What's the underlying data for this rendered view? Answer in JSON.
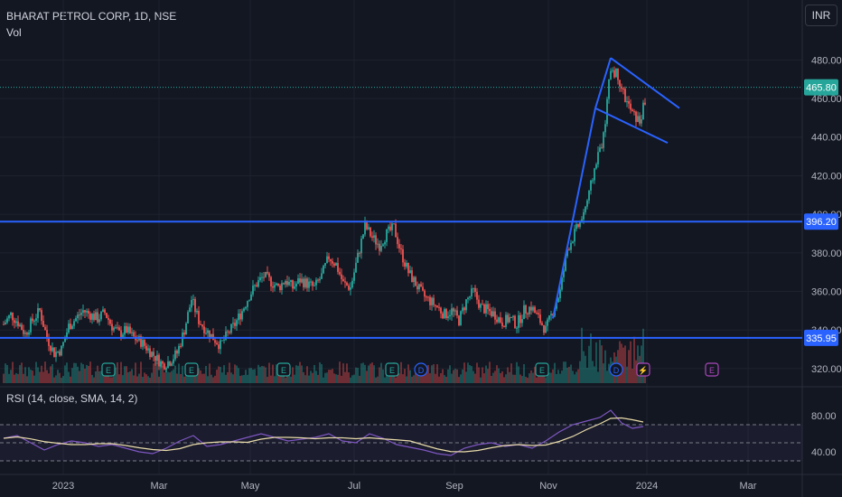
{
  "header": {
    "title": "BHARAT PETROL CORP, 1D, NSE",
    "volume_label": "Vol",
    "currency_button": "INR"
  },
  "rsi": {
    "label": "RSI (14, close, SMA, 14, 2)",
    "ticks": [
      "80.00",
      "40.00"
    ]
  },
  "colors": {
    "background": "#131722",
    "up": "#26a69a",
    "down": "#ef5350",
    "trendline": "#2962ff",
    "rsi_line": "#7e57c2",
    "rsi_ma": "#e8dba9",
    "current_price": "#26a69a"
  },
  "events": [
    {
      "kind": "earnings",
      "glyph": "E",
      "color": "#26a69a"
    },
    {
      "kind": "earnings",
      "glyph": "E",
      "color": "#26a69a"
    },
    {
      "kind": "earnings",
      "glyph": "E",
      "color": "#26a69a"
    },
    {
      "kind": "earnings",
      "glyph": "E",
      "color": "#26a69a"
    },
    {
      "kind": "dividend",
      "glyph": "D",
      "color": "#2962ff"
    },
    {
      "kind": "earnings",
      "glyph": "E",
      "color": "#26a69a"
    },
    {
      "kind": "dividend",
      "glyph": "D",
      "color": "#2962ff"
    },
    {
      "kind": "split",
      "glyph": "⚡",
      "color": "#ab47bc"
    },
    {
      "kind": "earnings",
      "glyph": "E",
      "color": "#ab47bc"
    }
  ],
  "chart_data": {
    "type": "candlestick",
    "title": "BHARAT PETROL CORP, 1D, NSE",
    "x_ticks": [
      "2023",
      "Mar",
      "May",
      "Jul",
      "Sep",
      "Nov",
      "2024",
      "Mar"
    ],
    "y_ticks": [
      "480.00",
      "460.00",
      "440.00",
      "420.00",
      "400.00",
      "380.00",
      "360.00",
      "340.00",
      "320.00"
    ],
    "ylim": [
      312,
      490
    ],
    "current_price": "465.80",
    "horizontal_levels": [
      "396.20",
      "335.95"
    ],
    "grid": true,
    "series": [
      {
        "name": "price",
        "points": [
          [
            0,
            343
          ],
          [
            8,
            348
          ],
          [
            16,
            344
          ],
          [
            24,
            338
          ],
          [
            32,
            345
          ],
          [
            40,
            350
          ],
          [
            48,
            336
          ],
          [
            56,
            328
          ],
          [
            64,
            330
          ],
          [
            72,
            342
          ],
          [
            80,
            346
          ],
          [
            88,
            350
          ],
          [
            96,
            348
          ],
          [
            104,
            346
          ],
          [
            112,
            349
          ],
          [
            120,
            342
          ],
          [
            128,
            338
          ],
          [
            136,
            340
          ],
          [
            144,
            336
          ],
          [
            152,
            334
          ],
          [
            160,
            330
          ],
          [
            168,
            326
          ],
          [
            176,
            322
          ],
          [
            184,
            324
          ],
          [
            192,
            328
          ],
          [
            200,
            340
          ],
          [
            208,
            356
          ],
          [
            216,
            345
          ],
          [
            224,
            340
          ],
          [
            232,
            336
          ],
          [
            240,
            332
          ],
          [
            248,
            338
          ],
          [
            256,
            343
          ],
          [
            264,
            350
          ],
          [
            272,
            358
          ],
          [
            280,
            364
          ],
          [
            288,
            368
          ],
          [
            296,
            365
          ],
          [
            304,
            362
          ],
          [
            312,
            366
          ],
          [
            320,
            362
          ],
          [
            328,
            366
          ],
          [
            336,
            364
          ],
          [
            344,
            362
          ],
          [
            352,
            368
          ],
          [
            360,
            378
          ],
          [
            368,
            374
          ],
          [
            376,
            364
          ],
          [
            384,
            362
          ],
          [
            392,
            378
          ],
          [
            400,
            394
          ],
          [
            408,
            388
          ],
          [
            416,
            384
          ],
          [
            424,
            390
          ],
          [
            432,
            393
          ],
          [
            440,
            380
          ],
          [
            448,
            370
          ],
          [
            456,
            364
          ],
          [
            464,
            358
          ],
          [
            472,
            355
          ],
          [
            480,
            352
          ],
          [
            488,
            348
          ],
          [
            496,
            350
          ],
          [
            504,
            345
          ],
          [
            512,
            355
          ],
          [
            520,
            360
          ],
          [
            528,
            352
          ],
          [
            536,
            350
          ],
          [
            544,
            348
          ],
          [
            552,
            344
          ],
          [
            560,
            346
          ],
          [
            568,
            343
          ],
          [
            576,
            350
          ],
          [
            584,
            352
          ],
          [
            592,
            346
          ],
          [
            600,
            340
          ],
          [
            608,
            350
          ],
          [
            616,
            360
          ],
          [
            624,
            382
          ],
          [
            632,
            390
          ],
          [
            640,
            398
          ],
          [
            648,
            410
          ],
          [
            656,
            428
          ],
          [
            664,
            440
          ],
          [
            672,
            476
          ],
          [
            680,
            472
          ],
          [
            688,
            460
          ],
          [
            696,
            452
          ],
          [
            704,
            448
          ],
          [
            712,
            462
          ]
        ]
      },
      {
        "name": "rsi",
        "points": [
          [
            0,
            55
          ],
          [
            15,
            58
          ],
          [
            30,
            50
          ],
          [
            45,
            42
          ],
          [
            60,
            48
          ],
          [
            75,
            52
          ],
          [
            90,
            50
          ],
          [
            105,
            46
          ],
          [
            120,
            48
          ],
          [
            135,
            44
          ],
          [
            150,
            40
          ],
          [
            165,
            38
          ],
          [
            180,
            44
          ],
          [
            195,
            52
          ],
          [
            210,
            58
          ],
          [
            225,
            46
          ],
          [
            240,
            48
          ],
          [
            255,
            52
          ],
          [
            270,
            56
          ],
          [
            285,
            60
          ],
          [
            300,
            56
          ],
          [
            315,
            52
          ],
          [
            330,
            54
          ],
          [
            345,
            56
          ],
          [
            360,
            60
          ],
          [
            375,
            52
          ],
          [
            390,
            50
          ],
          [
            405,
            60
          ],
          [
            420,
            55
          ],
          [
            435,
            48
          ],
          [
            450,
            45
          ],
          [
            465,
            42
          ],
          [
            480,
            38
          ],
          [
            495,
            36
          ],
          [
            510,
            44
          ],
          [
            525,
            48
          ],
          [
            540,
            50
          ],
          [
            555,
            46
          ],
          [
            570,
            48
          ],
          [
            585,
            44
          ],
          [
            600,
            52
          ],
          [
            615,
            62
          ],
          [
            630,
            70
          ],
          [
            645,
            74
          ],
          [
            660,
            78
          ],
          [
            672,
            86
          ],
          [
            684,
            72
          ],
          [
            696,
            66
          ],
          [
            708,
            68
          ]
        ]
      }
    ]
  }
}
